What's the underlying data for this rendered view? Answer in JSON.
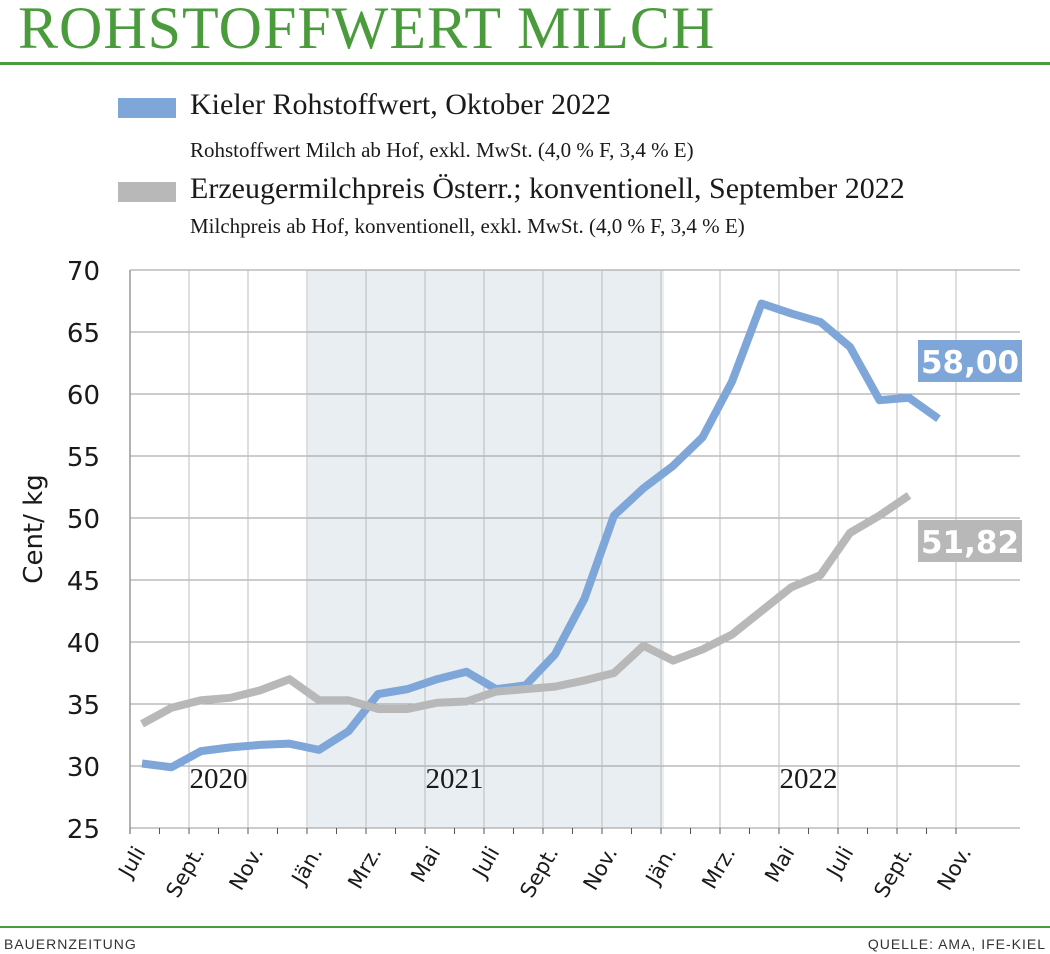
{
  "header": {
    "title": "ROHSTOFFWERT MILCH"
  },
  "legend": [
    {
      "name": "Kieler Rohstoffwert, Oktober 2022",
      "subtitle": "Rohstoffwert Milch ab Hof, exkl. MwSt. (4,0 % F, 3,4 % E)",
      "color": "#7ea6d9"
    },
    {
      "name": "Erzeugermilchpreis Österr.; konventionell, September 2022",
      "subtitle": "Milchpreis ab Hof, konventionell, exkl. MwSt. (4,0 % F, 3,4 % E)",
      "color": "#b8b8b8"
    }
  ],
  "footer": {
    "left": "BAUERNZEITUNG",
    "right": "QUELLE: AMA, IFE-KIEL"
  },
  "chart_data": {
    "type": "line",
    "ylabel": "Cent/ kg",
    "ylim": [
      25,
      70
    ],
    "yticks": [
      25,
      30,
      35,
      40,
      45,
      50,
      55,
      60,
      65,
      70
    ],
    "grid": true,
    "highlight_band": {
      "from": "2021-01",
      "to": "2021-12",
      "color": "#e8eef1"
    },
    "x_months": [
      "2020-07",
      "2020-08",
      "2020-09",
      "2020-10",
      "2020-11",
      "2020-12",
      "2021-01",
      "2021-02",
      "2021-03",
      "2021-04",
      "2021-05",
      "2021-06",
      "2021-07",
      "2021-08",
      "2021-09",
      "2021-10",
      "2021-11",
      "2021-12",
      "2022-01",
      "2022-02",
      "2022-03",
      "2022-04",
      "2022-05",
      "2022-06",
      "2022-07",
      "2022-08",
      "2022-09",
      "2022-10",
      "2022-11"
    ],
    "x_tick_labels": [
      {
        "label": "Juli",
        "month": "2020-07"
      },
      {
        "label": "Sept.",
        "month": "2020-09"
      },
      {
        "label": "Nov.",
        "month": "2020-11"
      },
      {
        "label": "Jän.",
        "month": "2021-01"
      },
      {
        "label": "Mrz.",
        "month": "2021-03"
      },
      {
        "label": "Mai",
        "month": "2021-05"
      },
      {
        "label": "Juli",
        "month": "2021-07"
      },
      {
        "label": "Sept.",
        "month": "2021-09"
      },
      {
        "label": "Nov.",
        "month": "2021-11"
      },
      {
        "label": "Jän.",
        "month": "2022-01"
      },
      {
        "label": "Mrz.",
        "month": "2022-03"
      },
      {
        "label": "Mai",
        "month": "2022-05"
      },
      {
        "label": "Juli",
        "month": "2022-07"
      },
      {
        "label": "Sept.",
        "month": "2022-09"
      },
      {
        "label": "Nov.",
        "month": "2022-11"
      }
    ],
    "year_labels": [
      {
        "label": "2020",
        "month": "2020-10"
      },
      {
        "label": "2021",
        "month": "2021-06"
      },
      {
        "label": "2022",
        "month": "2022-06"
      }
    ],
    "series": [
      {
        "name": "Kieler Rohstoffwert, Oktober 2022",
        "color": "#7ea6d9",
        "months": [
          "2020-07",
          "2020-08",
          "2020-09",
          "2020-10",
          "2020-11",
          "2020-12",
          "2021-01",
          "2021-02",
          "2021-03",
          "2021-04",
          "2021-05",
          "2021-06",
          "2021-07",
          "2021-08",
          "2021-09",
          "2021-10",
          "2021-11",
          "2021-12",
          "2022-01",
          "2022-02",
          "2022-03",
          "2022-04",
          "2022-05",
          "2022-06",
          "2022-07",
          "2022-08",
          "2022-09",
          "2022-10"
        ],
        "values": [
          30.2,
          29.9,
          31.2,
          31.5,
          31.7,
          31.8,
          31.3,
          32.8,
          35.8,
          36.2,
          37.0,
          37.6,
          36.2,
          36.5,
          39.0,
          43.5,
          50.2,
          52.4,
          54.2,
          56.5,
          61.0,
          67.3,
          66.5,
          65.8,
          63.8,
          59.5,
          59.7,
          58.0
        ],
        "end_label": "58,00"
      },
      {
        "name": "Erzeugermilchpreis Österr.; konventionell, September 2022",
        "color": "#b8b8b8",
        "months": [
          "2020-07",
          "2020-08",
          "2020-09",
          "2020-10",
          "2020-11",
          "2020-12",
          "2021-01",
          "2021-02",
          "2021-03",
          "2021-04",
          "2021-05",
          "2021-06",
          "2021-07",
          "2021-08",
          "2021-09",
          "2021-10",
          "2021-11",
          "2021-12",
          "2022-01",
          "2022-02",
          "2022-03",
          "2022-04",
          "2022-05",
          "2022-06",
          "2022-07",
          "2022-08",
          "2022-09"
        ],
        "values": [
          33.4,
          34.7,
          35.3,
          35.5,
          36.1,
          37.0,
          35.3,
          35.3,
          34.6,
          34.6,
          35.1,
          35.2,
          36.0,
          36.2,
          36.4,
          36.9,
          37.5,
          39.7,
          38.5,
          39.4,
          40.6,
          42.5,
          44.4,
          45.4,
          48.8,
          50.2,
          51.82
        ],
        "end_label": "51,82"
      }
    ]
  }
}
